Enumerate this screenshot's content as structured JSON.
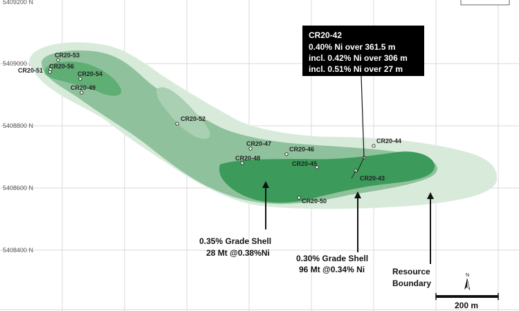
{
  "northings": [
    "5409200 N",
    "5409000 N",
    "5408800 N",
    "5408600 N",
    "5408400 N"
  ],
  "holes": [
    {
      "id": "CR20-53"
    },
    {
      "id": "CR20-56"
    },
    {
      "id": "CR20-51"
    },
    {
      "id": "CR20-54"
    },
    {
      "id": "CR20-49"
    },
    {
      "id": "CR20-52"
    },
    {
      "id": "CR20-47"
    },
    {
      "id": "CR20-46"
    },
    {
      "id": "CR20-48"
    },
    {
      "id": "CR20-45"
    },
    {
      "id": "CR20-44"
    },
    {
      "id": "CR20-43"
    },
    {
      "id": "CR20-50"
    }
  ],
  "callout": {
    "hole": "CR20-42",
    "line1": "0.40% Ni over 361.5 m",
    "line2": "incl. 0.42% Ni over 306 m",
    "line3": "incl. 0.51% Ni over 27 m"
  },
  "annotations": {
    "shell_035_title": "0.35% Grade Shell",
    "shell_035_value": "28 Mt @0.38%Ni",
    "shell_030_title": "0.30% Grade Shell",
    "shell_030_value": "96 Mt @0.34% Ni",
    "resource_line1": "Resource",
    "resource_line2": "Boundary"
  },
  "scale": {
    "label": "200 m"
  },
  "north": {
    "label": "N"
  },
  "colors": {
    "resource_boundary": "#d8ebdb",
    "shell_030": "#8fc29c",
    "shell_035": "#3c9a5b",
    "callout_bg": "#000000"
  }
}
